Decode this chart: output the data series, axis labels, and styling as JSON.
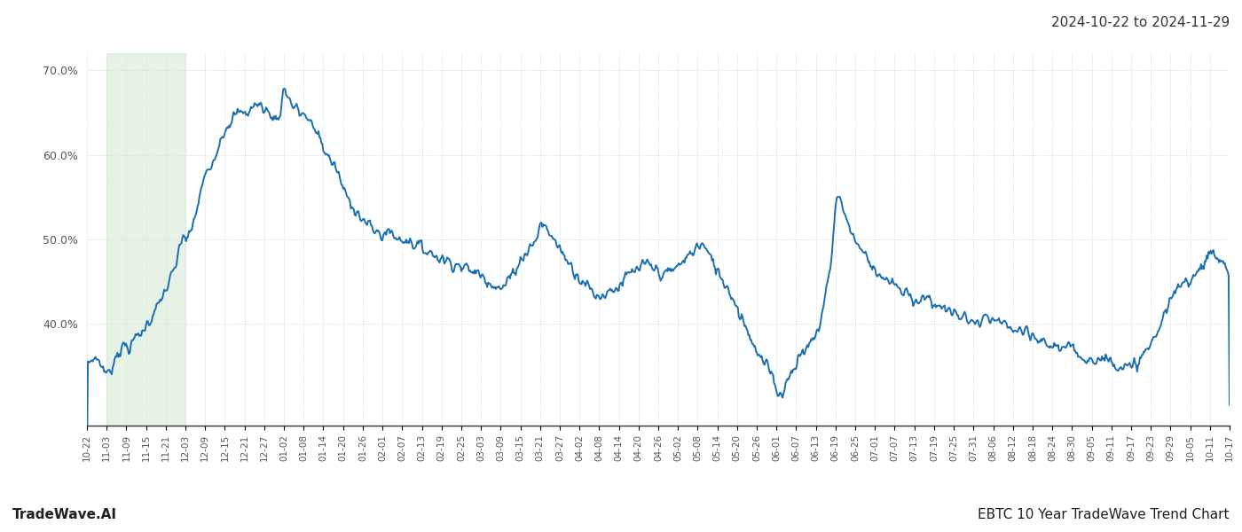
{
  "title_right": "2024-10-22 to 2024-11-29",
  "footer_left": "TradeWave.AI",
  "footer_right": "EBTC 10 Year TradeWave Trend Chart",
  "ylim": [
    0.28,
    0.72
  ],
  "yticks": [
    0.4,
    0.5,
    0.6,
    0.7
  ],
  "line_color": "#1a6faf",
  "line_width": 1.4,
  "shade_color": "#d4ead4",
  "shade_alpha": 0.6,
  "background_color": "#ffffff",
  "grid_color": "#cccccc",
  "x_labels": [
    "10-22",
    "11-03",
    "11-09",
    "11-15",
    "11-21",
    "12-03",
    "12-09",
    "12-15",
    "12-21",
    "12-27",
    "01-02",
    "01-08",
    "01-14",
    "01-20",
    "01-26",
    "02-01",
    "02-07",
    "02-13",
    "02-19",
    "02-25",
    "03-03",
    "03-09",
    "03-15",
    "03-21",
    "03-27",
    "04-02",
    "04-08",
    "04-14",
    "04-20",
    "04-26",
    "05-02",
    "05-08",
    "05-14",
    "05-20",
    "05-26",
    "06-01",
    "06-07",
    "06-13",
    "06-19",
    "06-25",
    "07-01",
    "07-07",
    "07-13",
    "07-19",
    "07-25",
    "07-31",
    "08-06",
    "08-12",
    "08-18",
    "08-24",
    "08-30",
    "09-05",
    "09-11",
    "09-17",
    "09-23",
    "09-29",
    "10-05",
    "10-11",
    "10-17"
  ],
  "shade_xstart_label_idx": 1,
  "shade_xend_label_idx": 5,
  "title_fontsize": 11,
  "footer_fontsize": 11
}
